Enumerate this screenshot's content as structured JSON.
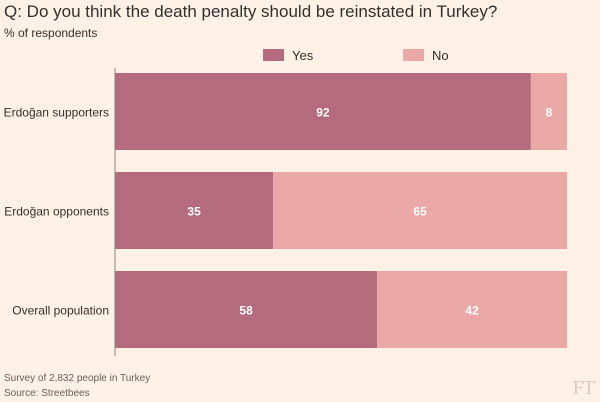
{
  "chart_data": {
    "type": "bar",
    "orientation": "horizontal",
    "stacked": true,
    "title": "Q: Do you think the death penalty should be reinstated in Turkey?",
    "subtitle": "% of respondents",
    "categories": [
      "Erdoğan supporters",
      "Erdoğan opponents",
      "Overall population"
    ],
    "series": [
      {
        "name": "Yes",
        "values": [
          92,
          35,
          58
        ],
        "color": "#b36b7d",
        "label_color": "#ffffff"
      },
      {
        "name": "No",
        "values": [
          8,
          65,
          42
        ],
        "color": "#eaa9a7",
        "label_color": "#ffffff"
      }
    ],
    "xlim": [
      0,
      100
    ],
    "legend": "top"
  },
  "footer": {
    "note": "Survey of 2,832 people in Turkey",
    "source": "Source: Streetbees"
  },
  "brand": "FT"
}
